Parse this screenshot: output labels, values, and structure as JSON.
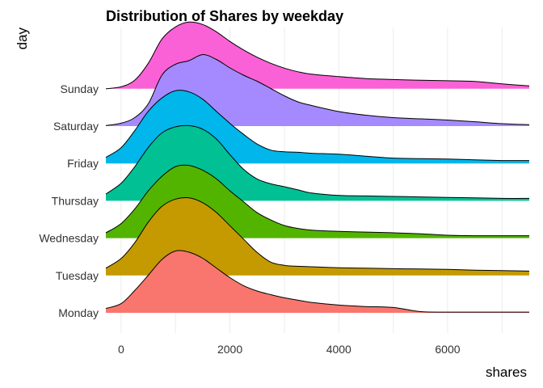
{
  "chart_data": {
    "type": "ridgeline",
    "title": "Distribution of Shares by weekday",
    "xlabel": "shares",
    "ylabel": "day",
    "xlim": [
      -280,
      7500
    ],
    "x_ticks": [
      0,
      2000,
      4000,
      6000
    ],
    "x_tick_labels": [
      "0",
      "2000",
      "4000",
      "6000"
    ],
    "grid": true,
    "legend": "none",
    "x": [
      -250,
      0,
      250,
      500,
      750,
      1000,
      1250,
      1500,
      1750,
      2000,
      2250,
      2500,
      2750,
      3000,
      3250,
      3500,
      4000,
      4500,
      5000,
      5500,
      6000,
      6500,
      7000,
      7500
    ],
    "series": [
      {
        "name": "Monday",
        "color": "#F8766D",
        "values": [
          0.18,
          0.38,
          0.92,
          1.55,
          2.2,
          2.55,
          2.5,
          2.25,
          1.85,
          1.45,
          1.12,
          0.9,
          0.75,
          0.62,
          0.52,
          0.43,
          0.32,
          0.26,
          0.22,
          0.05,
          0.03,
          0.03,
          0.03,
          0.03
        ]
      },
      {
        "name": "Tuesday",
        "color": "#C49A00",
        "values": [
          0.3,
          0.7,
          1.35,
          2.2,
          2.85,
          3.15,
          3.2,
          3.0,
          2.6,
          2.05,
          1.5,
          0.95,
          0.55,
          0.42,
          0.38,
          0.36,
          0.32,
          0.3,
          0.28,
          0.27,
          0.25,
          0.22,
          0.2,
          0.18
        ]
      },
      {
        "name": "Wednesday",
        "color": "#53B400",
        "values": [
          0.22,
          0.6,
          1.2,
          1.95,
          2.55,
          2.95,
          3.0,
          2.8,
          2.45,
          1.95,
          1.5,
          1.05,
          0.75,
          0.52,
          0.4,
          0.33,
          0.28,
          0.25,
          0.22,
          0.18,
          0.12,
          0.1,
          0.1,
          0.1
        ]
      },
      {
        "name": "Thursday",
        "color": "#00C094",
        "values": [
          0.28,
          0.72,
          1.4,
          2.2,
          2.8,
          3.05,
          3.1,
          2.95,
          2.55,
          1.9,
          1.3,
          0.9,
          0.7,
          0.58,
          0.45,
          0.32,
          0.22,
          0.2,
          0.18,
          0.16,
          0.14,
          0.12,
          0.1,
          0.1
        ]
      },
      {
        "name": "Friday",
        "color": "#00B6EB",
        "values": [
          0.25,
          0.65,
          1.35,
          2.15,
          2.7,
          3.0,
          2.95,
          2.65,
          2.15,
          1.65,
          1.2,
          0.8,
          0.55,
          0.48,
          0.46,
          0.42,
          0.38,
          0.3,
          0.22,
          0.2,
          0.18,
          0.15,
          0.12,
          0.12
        ]
      },
      {
        "name": "Saturday",
        "color": "#A58AFF",
        "values": [
          0.02,
          0.12,
          0.35,
          0.92,
          2.1,
          2.55,
          2.7,
          2.95,
          2.75,
          2.4,
          2.1,
          1.85,
          1.55,
          1.25,
          1.0,
          0.85,
          0.6,
          0.45,
          0.35,
          0.3,
          0.25,
          0.18,
          0.1,
          0.06
        ]
      },
      {
        "name": "Sunday",
        "color": "#FB61D7",
        "values": [
          0.0,
          0.08,
          0.35,
          1.05,
          2.05,
          2.55,
          2.75,
          2.65,
          2.35,
          1.95,
          1.6,
          1.3,
          1.05,
          0.85,
          0.7,
          0.6,
          0.5,
          0.42,
          0.38,
          0.35,
          0.33,
          0.3,
          0.2,
          0.12
        ]
      }
    ]
  }
}
